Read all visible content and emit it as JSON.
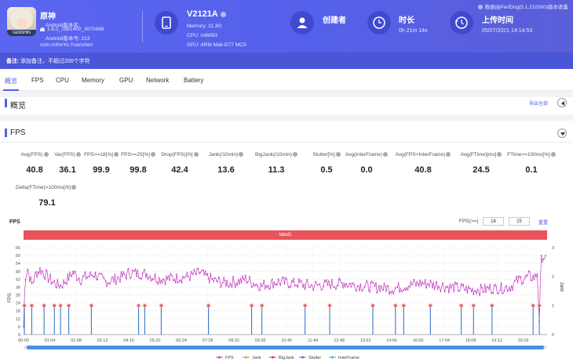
{
  "app": {
    "name": "原神",
    "icon_text": "GENSHIN",
    "version_label": "Android版本名:",
    "version_value": "1.6.0_2961400_3070488",
    "version_code": "Android版本号: 213",
    "package": "com.miHoYo.Yuanshen"
  },
  "device": {
    "name": "V2121A",
    "memory": "Memory: 11.3G",
    "cpu": "CPU: mt6893",
    "gpu": "GPU: ARM Mali-G77 MC9"
  },
  "creator": {
    "label": "创建者"
  },
  "duration": {
    "label": "时长",
    "value": "0h 21m 14s"
  },
  "upload": {
    "label": "上传时间",
    "value": "05/07/2021 14:14:53"
  },
  "source": "数据由PerfDog(5.1.210300)版本收集",
  "note": {
    "label": "备注:",
    "hint": "添加备注，不超过200个字符"
  },
  "tabs": [
    "概览",
    "FPS",
    "CPU",
    "Memory",
    "GPU",
    "Network",
    "Battery"
  ],
  "overview": {
    "title": "概览",
    "export": "导出全部"
  },
  "fps_section": {
    "title": "FPS"
  },
  "metrics": [
    {
      "label": "Avg(FPS)",
      "value": "40.8"
    },
    {
      "label": "Var(FPS)",
      "value": "36.1"
    },
    {
      "label": "FPS>=18[%]",
      "value": "99.9"
    },
    {
      "label": "FPS>=25[%]",
      "value": "99.8"
    },
    {
      "label": "Drop(FPS)[/h]",
      "value": "42.4"
    },
    {
      "label": "Jank(/10min)",
      "value": "13.6"
    },
    {
      "label": "BigJank(/10min)",
      "value": "11.3"
    },
    {
      "label": "Stutter[%]",
      "value": "0.5"
    },
    {
      "label": "Avg(InterFrame)",
      "value": "0.0"
    },
    {
      "label": "Avg(FPS+InterFrame)",
      "value": "40.8"
    },
    {
      "label": "Avg(FTime)[ms]",
      "value": "24.5"
    },
    {
      "label": "FTime>=100ms[%]",
      "value": "0.1"
    },
    {
      "label": "Delta(FTime)>100ms[/h]",
      "value": "79.1"
    }
  ],
  "fps_filter": {
    "label": "FPS(>=)",
    "low": "18",
    "high": "25",
    "reset": "重置"
  },
  "colors": {
    "fps": "#c23cc2",
    "jank": "#f0923a",
    "bigjank": "#e23b2e",
    "stutter": "#3a78c9",
    "interframe": "#2ab0d8",
    "accent": "#5061e6",
    "label_bar": "#e9535b"
  },
  "chart_data": {
    "type": "line",
    "title": "FPS",
    "label_band": "label1",
    "xlabel": "",
    "ylabel": "FPS",
    "y2label": "Jank",
    "ylim": [
      0,
      66
    ],
    "y2lim": [
      0,
      3
    ],
    "y_ticks": [
      0,
      6,
      12,
      18,
      24,
      30,
      36,
      42,
      48,
      54,
      60,
      66
    ],
    "y2_ticks": [
      0,
      1,
      2,
      3
    ],
    "x_ticks": [
      "00:00",
      "01:04",
      "02:08",
      "03:12",
      "04:16",
      "05:20",
      "06:24",
      "07:28",
      "08:32",
      "09:36",
      "10:40",
      "11:44",
      "12:48",
      "13:52",
      "14:56",
      "16:00",
      "17:04",
      "18:08",
      "19:12",
      "20:16"
    ],
    "x_tick_seconds": [
      0,
      64,
      128,
      192,
      256,
      320,
      384,
      448,
      512,
      576,
      640,
      704,
      768,
      832,
      896,
      960,
      1024,
      1088,
      1152,
      1216
    ],
    "x_range_seconds": [
      0,
      1274
    ],
    "legend": [
      "FPS",
      "Jank",
      "BigJank",
      "Stutter",
      "InterFrame"
    ],
    "legend_position": "bottom",
    "grid": true,
    "series": [
      {
        "name": "FPS",
        "anchors_seconds": [
          0,
          4,
          10,
          20,
          30,
          40,
          55,
          70,
          90,
          120,
          140,
          170,
          200,
          230,
          260,
          300,
          330,
          360,
          400,
          430,
          460,
          500,
          540,
          560,
          580,
          620,
          660,
          700,
          740,
          780,
          820,
          860,
          900,
          940,
          980,
          1020,
          1060,
          1100,
          1140,
          1180,
          1210,
          1230,
          1245,
          1250,
          1255,
          1260,
          1274
        ],
        "anchors_fps": [
          6,
          44,
          50,
          38,
          46,
          49,
          45,
          40,
          37,
          47,
          42,
          46,
          40,
          43,
          47,
          46,
          42,
          43,
          44,
          47,
          41,
          39,
          42,
          39,
          37,
          40,
          39,
          37,
          38,
          39,
          37,
          36,
          35,
          38,
          39,
          37,
          35,
          34,
          35,
          36,
          42,
          44,
          43,
          47,
          12,
          59,
          59
        ]
      },
      {
        "name": "BigJank",
        "events_seconds": [
          2,
          20,
          50,
          75,
          90,
          110,
          165,
          280,
          295,
          335,
          450,
          555,
          580,
          685,
          745,
          850,
          905,
          925,
          990,
          1065,
          1095,
          1140,
          1240,
          1255
        ],
        "level": 1
      },
      {
        "name": "Jank",
        "events_seconds": [
          2,
          20,
          50,
          75,
          90,
          110,
          165,
          280,
          295,
          335,
          450,
          555,
          580,
          685,
          745,
          850,
          905,
          925,
          990,
          1065,
          1095,
          1140,
          1240,
          1255
        ],
        "level": 1
      },
      {
        "name": "Stutter",
        "events_seconds": [],
        "level": 0
      },
      {
        "name": "InterFrame",
        "events_seconds": [],
        "level": 0
      }
    ]
  }
}
